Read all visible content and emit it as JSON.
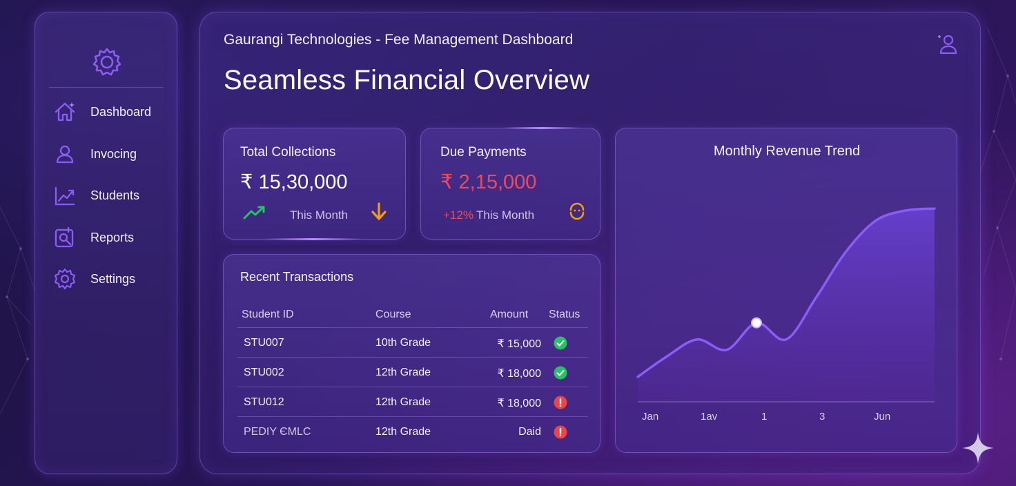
{
  "sidebar": {
    "items": [
      {
        "label": "Dashboard",
        "icon": "home-icon"
      },
      {
        "label": "Invocing",
        "icon": "user-icon"
      },
      {
        "label": "Students",
        "icon": "trend-icon"
      },
      {
        "label": "Reports",
        "icon": "reports-icon"
      },
      {
        "label": "Settings",
        "icon": "gear-icon"
      }
    ]
  },
  "header": {
    "subtitle": "Gaurangi Technologies - Fee Management Dashboard",
    "title": "Seamless Financial Overview"
  },
  "cards": {
    "total": {
      "title": "Total Collections",
      "value": "₹ 15,30,000",
      "period": "This Month"
    },
    "due": {
      "title": "Due Payments",
      "value": "₹ 2,15,000",
      "change": "+12%",
      "period": "This Month"
    }
  },
  "transactions": {
    "title": "Recent Transactions",
    "columns": [
      "Student ID",
      "Course",
      "Amount",
      "Status"
    ],
    "rows": [
      {
        "id": "STU007",
        "course": "10th Grade",
        "amount": "₹ 15,000",
        "status": "paid"
      },
      {
        "id": "STU002",
        "course": "12th Grade",
        "amount": "₹ 18,000",
        "status": "paid"
      },
      {
        "id": "STU012",
        "course": "12th Grade",
        "amount": "₹ 18,000",
        "status": "due"
      },
      {
        "id": "PEDIY ЄMLC",
        "course": "12th Grade",
        "amount": "Daid",
        "status": "due"
      }
    ]
  },
  "colors": {
    "accent": "#8b5cf6",
    "paid": "#22c55e",
    "due": "#ef4444",
    "down_arrow": "#f59e0b",
    "value_red": "#ef4a5c"
  },
  "chart_data": {
    "type": "area",
    "title": "Monthly Revenue Trend",
    "tick_labels": [
      "Jan",
      "1av",
      "1",
      "3",
      "Jun"
    ],
    "x": [
      0,
      0.5,
      1,
      1.5,
      2,
      2.5,
      3,
      3.5,
      4,
      4.5,
      5
    ],
    "values": [
      12,
      22,
      30,
      25,
      38,
      30,
      50,
      72,
      87,
      92,
      93
    ],
    "highlight_index": 4,
    "ylim": [
      0,
      100
    ],
    "grid": false
  }
}
